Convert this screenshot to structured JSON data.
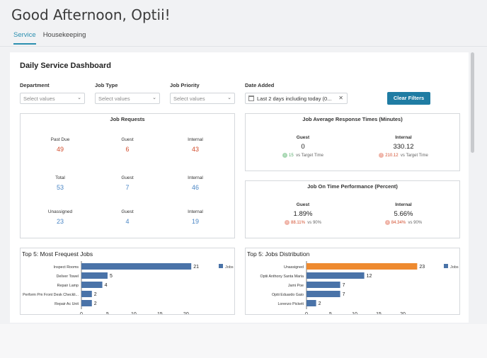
{
  "greeting": "Good Afternoon, Optii!",
  "tabs": [
    {
      "label": "Service",
      "active": true
    },
    {
      "label": "Housekeeping",
      "active": false
    }
  ],
  "dashboard_title": "Daily Service Dashboard",
  "filters": {
    "department": {
      "label": "Department",
      "placeholder": "Select values"
    },
    "job_type": {
      "label": "Job Type",
      "placeholder": "Select values"
    },
    "job_priority": {
      "label": "Job Priority",
      "placeholder": "Select values"
    },
    "date_added": {
      "label": "Date Added",
      "value": "Last 2 days including today (0..."
    },
    "clear_label": "Clear Filters"
  },
  "job_requests": {
    "title": "Job Requests",
    "rows": [
      [
        {
          "label": "Past Due",
          "value": "49"
        },
        {
          "label": "Guest",
          "value": "6"
        },
        {
          "label": "Internal",
          "value": "43"
        }
      ],
      [
        {
          "label": "Total",
          "value": "53"
        },
        {
          "label": "Guest",
          "value": "7"
        },
        {
          "label": "Internal",
          "value": "46"
        }
      ],
      [
        {
          "label": "Unassigned",
          "value": "23"
        },
        {
          "label": "Guest",
          "value": "4"
        },
        {
          "label": "Internal",
          "value": "19"
        }
      ]
    ]
  },
  "response_times": {
    "title": "Job Average Response Times (Minutes)",
    "guest": {
      "label": "Guest",
      "value": "0",
      "delta": "15",
      "note": "vs Target Time"
    },
    "internal": {
      "label": "Internal",
      "value": "330.12",
      "delta": "210.12",
      "note": "vs Target Time"
    }
  },
  "on_time": {
    "title": "Job On Time Performance (Percent)",
    "guest": {
      "label": "Guest",
      "value": "1.89%",
      "delta": "88.11%",
      "note": "vs 90%"
    },
    "internal": {
      "label": "Internal",
      "value": "5.66%",
      "delta": "84.34%",
      "note": "vs 90%"
    }
  },
  "colors": {
    "accent": "#2b8fb0",
    "bar": "#4a73a8",
    "highlight": "#ee8a2f",
    "red": "#d24b2b",
    "blue": "#4a86c5"
  },
  "chart_data": [
    {
      "type": "bar",
      "orientation": "horizontal",
      "title": "Top 5: Most Frequest Jobs",
      "categories": [
        "Inspect Rooms",
        "Deliver Towel",
        "Repair Lamp",
        "Perform Pm Front Desk Checkli...",
        "Repair Ac Unit"
      ],
      "series": [
        {
          "name": "Jobs",
          "values": [
            21,
            5,
            4,
            2,
            2
          ]
        }
      ],
      "xticks": [
        0,
        5,
        10,
        15,
        20
      ],
      "xlim": [
        0,
        23
      ],
      "legend": "top-right"
    },
    {
      "type": "bar",
      "orientation": "horizontal",
      "title": "Top 5: Jobs Distribution",
      "categories": [
        "Unassigned",
        "Optii Anthony Santa Maria",
        "Jami Poe",
        "Optii Eduardo Gaio",
        "Lorenzo Pickett"
      ],
      "series": [
        {
          "name": "Jobs",
          "values": [
            23,
            12,
            7,
            7,
            2
          ]
        }
      ],
      "highlight_index": 0,
      "xticks": [
        0,
        5,
        10,
        15,
        20
      ],
      "xlim": [
        0,
        25
      ],
      "legend": "top-right"
    }
  ]
}
